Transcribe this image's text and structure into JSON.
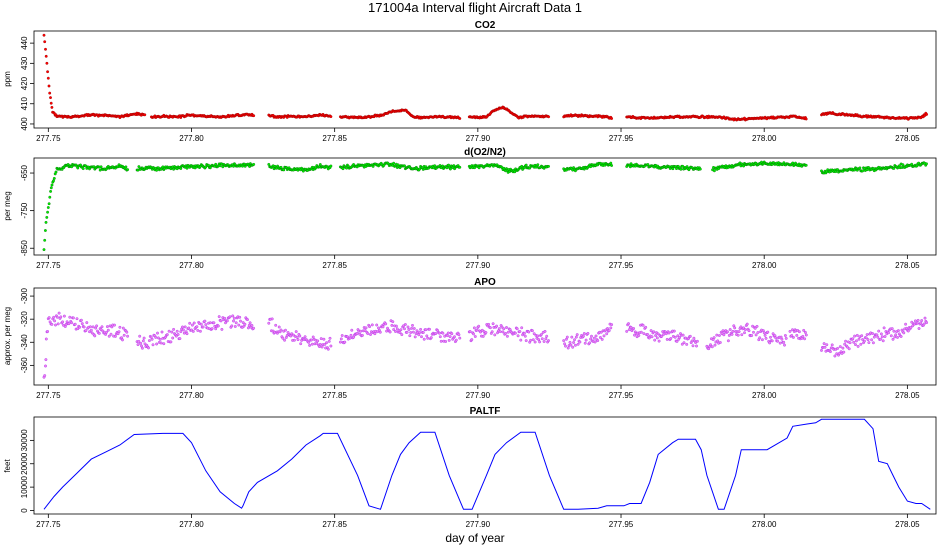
{
  "figure": {
    "title": "171004a   Interval flight Aircraft Data 1",
    "xlabel": "day of year"
  },
  "chart_data": [
    {
      "type": "scatter",
      "title": "CO2",
      "ylabel": "ppm",
      "xlim": [
        277.745,
        278.06
      ],
      "ylim": [
        398,
        446
      ],
      "xticks": [
        "277.75",
        "277.80",
        "277.85",
        "277.90",
        "277.95",
        "278.00",
        "278.05"
      ],
      "yticks": [
        "400",
        "410",
        "420",
        "430",
        "440"
      ],
      "colors": {
        "main": "#ff0000",
        "edge": "#8b0000"
      },
      "segments": [
        {
          "x": [
            277.7485,
            277.7495,
            277.7505,
            277.7515,
            277.753,
            277.756,
            277.76,
            277.765,
            277.77,
            277.775,
            277.78,
            277.784
          ],
          "y": [
            444,
            430,
            415,
            406,
            404,
            403.5,
            403.8,
            404.5,
            404.2,
            403.5,
            405,
            404.6
          ]
        },
        {
          "x": [
            277.786,
            277.79,
            277.795,
            277.8,
            277.805,
            277.81,
            277.815,
            277.82,
            277.822
          ],
          "y": [
            403.5,
            403.8,
            403.5,
            404.5,
            403.8,
            403.5,
            404.2,
            404.5,
            404.2
          ]
        },
        {
          "x": [
            277.827,
            277.83,
            277.835,
            277.84,
            277.845,
            277.849
          ],
          "y": [
            404.2,
            403.5,
            403.8,
            403.4,
            404.6,
            403.5
          ]
        },
        {
          "x": [
            277.852,
            277.86,
            277.865,
            277.868,
            277.87,
            277.875,
            277.877,
            277.88,
            277.885,
            277.89,
            277.894
          ],
          "y": [
            403.5,
            403.2,
            404,
            405,
            406.2,
            406.8,
            403.8,
            403.2,
            403.6,
            403.4,
            403.2
          ]
        },
        {
          "x": [
            277.897,
            277.9,
            277.903,
            277.906,
            277.909,
            277.911,
            277.914,
            277.918,
            277.922,
            277.925
          ],
          "y": [
            403.5,
            403.2,
            403.6,
            407,
            408.2,
            406.5,
            403.2,
            403.8,
            403.8,
            403.4
          ]
        },
        {
          "x": [
            277.93,
            277.935,
            277.94,
            277.945,
            277.947
          ],
          "y": [
            404,
            404.2,
            403.8,
            403.5,
            402.8
          ]
        },
        {
          "x": [
            277.952,
            277.96,
            277.97,
            277.98,
            277.985,
            277.99,
            278.0,
            278.005,
            278.01,
            278.015
          ],
          "y": [
            403.5,
            402.8,
            403.5,
            403.6,
            403.2,
            402.2,
            403,
            403.2,
            403.8,
            402.8
          ]
        },
        {
          "x": [
            278.02,
            278.023,
            278.03,
            278.035,
            278.04,
            278.045,
            278.05,
            278.055,
            278.057
          ],
          "y": [
            404.8,
            405.3,
            404.5,
            403.8,
            403.5,
            403,
            402.8,
            403.2,
            405.5
          ]
        }
      ]
    },
    {
      "type": "scatter",
      "title": "d(O2/N2)",
      "ylabel": "per meg",
      "xlim": [
        277.745,
        278.06
      ],
      "ylim": [
        -868,
        -610
      ],
      "xticks": [
        "277.75",
        "277.80",
        "277.85",
        "277.90",
        "277.95",
        "278.00",
        "278.05"
      ],
      "yticks": [
        "-850",
        "-750",
        "-650"
      ],
      "colors": {
        "main": "#00ee00",
        "edge": "#006400"
      },
      "segments": [
        {
          "x": [
            277.7485,
            277.7492,
            277.75,
            277.7508,
            277.7518,
            277.753,
            277.756,
            277.76,
            277.765,
            277.77,
            277.775,
            277.778
          ],
          "y": [
            -852,
            -780,
            -740,
            -700,
            -670,
            -642,
            -630,
            -632,
            -636,
            -638,
            -632,
            -640
          ]
        },
        {
          "x": [
            277.781,
            277.79,
            277.8,
            277.81,
            277.815,
            277.82,
            277.822
          ],
          "y": [
            -638,
            -637,
            -633,
            -630,
            -630,
            -627,
            -628
          ]
        },
        {
          "x": [
            277.827,
            277.835,
            277.84,
            277.845,
            277.849
          ],
          "y": [
            -632,
            -640,
            -642,
            -630,
            -636
          ]
        },
        {
          "x": [
            277.852,
            277.86,
            277.865,
            277.87,
            277.875,
            277.877,
            277.88,
            277.888,
            277.894
          ],
          "y": [
            -636,
            -630,
            -626,
            -628,
            -635,
            -640,
            -636,
            -634,
            -634
          ]
        },
        {
          "x": [
            277.897,
            277.902,
            277.907,
            277.91,
            277.912,
            277.915,
            277.92,
            277.925
          ],
          "y": [
            -634,
            -632,
            -630,
            -642,
            -646,
            -636,
            -632,
            -636
          ]
        },
        {
          "x": [
            277.93,
            277.935,
            277.94,
            277.945,
            277.947
          ],
          "y": [
            -638,
            -640,
            -630,
            -626,
            -624
          ]
        },
        {
          "x": [
            277.952,
            277.96,
            277.97,
            277.978
          ],
          "y": [
            -628,
            -632,
            -635,
            -638
          ]
        },
        {
          "x": [
            277.982,
            277.99,
            278.0,
            278.01,
            278.015
          ],
          "y": [
            -640,
            -628,
            -624,
            -626,
            -630
          ]
        },
        {
          "x": [
            278.02,
            278.025,
            278.03,
            278.04,
            278.05,
            278.057
          ],
          "y": [
            -646,
            -644,
            -642,
            -638,
            -630,
            -625
          ]
        }
      ]
    },
    {
      "type": "scatter",
      "title": "APO",
      "ylabel": "approx. per meg",
      "xlim": [
        277.745,
        278.06
      ],
      "ylim": [
        -377,
        -293
      ],
      "xticks": [
        "277.75",
        "277.80",
        "277.85",
        "277.90",
        "277.95",
        "278.00",
        "278.05"
      ],
      "yticks": [
        "-360",
        "-340",
        "-320",
        "-300"
      ],
      "colors": {
        "main": "#ee82ee",
        "edge": "#a020f0"
      },
      "segments": [
        {
          "x": [
            277.7485,
            277.749,
            277.7493,
            277.75,
            277.755,
            277.76,
            277.765,
            277.77,
            277.775,
            277.778
          ],
          "y": [
            -372,
            -360,
            -340,
            -322,
            -320,
            -325,
            -329,
            -330,
            -331,
            -335
          ]
        },
        {
          "x": [
            277.781,
            277.785,
            277.79,
            277.795,
            277.8,
            277.805,
            277.81,
            277.815,
            277.822
          ],
          "y": [
            -338,
            -340,
            -336,
            -333,
            -327,
            -325,
            -323,
            -322,
            -325
          ]
        },
        {
          "x": [
            277.827,
            277.83,
            277.835,
            277.84,
            277.845,
            277.849
          ],
          "y": [
            -322,
            -330,
            -335,
            -338,
            -340,
            -342
          ]
        },
        {
          "x": [
            277.852,
            277.86,
            277.865,
            277.87,
            277.875,
            277.88,
            277.885,
            277.89,
            277.894
          ],
          "y": [
            -336,
            -330,
            -328,
            -327,
            -329,
            -332,
            -334,
            -334,
            -336
          ]
        },
        {
          "x": [
            277.897,
            277.9,
            277.905,
            277.91,
            277.915,
            277.92,
            277.925
          ],
          "y": [
            -336,
            -330,
            -328,
            -330,
            -332,
            -336,
            -334
          ]
        },
        {
          "x": [
            277.93,
            277.935,
            277.94,
            277.945,
            277.947
          ],
          "y": [
            -340,
            -338,
            -336,
            -332,
            -325
          ]
        },
        {
          "x": [
            277.952,
            277.958,
            277.963,
            277.968,
            277.972,
            277.977
          ],
          "y": [
            -328,
            -330,
            -335,
            -334,
            -336,
            -342
          ]
        },
        {
          "x": [
            277.98,
            277.985,
            277.99,
            277.995,
            278.0,
            278.005,
            278.008
          ],
          "y": [
            -342,
            -335,
            -330,
            -330,
            -334,
            -338,
            -340
          ]
        },
        {
          "x": [
            278.009,
            278.012,
            278.015
          ],
          "y": [
            -330,
            -332,
            -334
          ]
        },
        {
          "x": [
            278.02,
            278.025,
            278.03,
            278.035,
            278.04,
            278.045,
            278.05,
            278.055,
            278.057
          ],
          "y": [
            -345,
            -348,
            -342,
            -338,
            -334,
            -332,
            -328,
            -322,
            -318
          ]
        }
      ]
    },
    {
      "type": "line",
      "title": "PALTF",
      "ylabel": "feet",
      "xlim": [
        277.745,
        278.06
      ],
      "ylim": [
        -1500,
        40000
      ],
      "xticks": [
        "277.75",
        "277.80",
        "277.85",
        "277.90",
        "277.95",
        "278.00",
        "278.05"
      ],
      "yticks": [
        "0",
        "10000",
        "20000",
        "30000"
      ],
      "colors": {
        "main": "#0000ff"
      },
      "x": [
        277.7485,
        277.752,
        277.755,
        277.76,
        277.765,
        277.77,
        277.775,
        277.78,
        277.79,
        277.797,
        277.8,
        277.805,
        277.81,
        277.815,
        277.8175,
        277.818,
        277.82,
        277.823,
        277.83,
        277.835,
        277.84,
        277.845,
        277.846,
        277.851,
        277.858,
        277.862,
        277.866,
        277.87,
        277.873,
        277.876,
        277.88,
        277.885,
        277.89,
        277.895,
        277.898,
        277.903,
        277.906,
        277.91,
        277.915,
        277.92,
        277.925,
        277.93,
        277.935,
        277.942,
        277.945,
        277.947,
        277.951,
        277.953,
        277.957,
        277.96,
        277.962,
        277.963,
        277.968,
        277.97,
        277.975,
        277.976,
        277.978,
        277.98,
        277.984,
        277.986,
        277.99,
        277.992,
        278.0,
        278.001,
        278.008,
        278.01,
        278.015,
        278.018,
        278.02,
        278.022,
        278.026,
        278.03,
        278.035,
        278.038,
        278.04,
        278.043,
        278.045,
        278.047,
        278.05,
        278.053,
        278.055,
        278.058
      ],
      "y": [
        500,
        6000,
        10000,
        16000,
        22000,
        25000,
        28000,
        32500,
        33000,
        33000,
        29000,
        17000,
        8000,
        3000,
        1000,
        2000,
        8000,
        12000,
        17000,
        22000,
        28000,
        32000,
        33000,
        33000,
        15000,
        2000,
        500,
        15000,
        24000,
        29000,
        33500,
        33500,
        15000,
        500,
        500,
        15000,
        24000,
        29000,
        33500,
        33500,
        15000,
        500,
        500,
        1000,
        2000,
        2000,
        2000,
        3000,
        3000,
        12000,
        20000,
        24000,
        29000,
        30500,
        30500,
        30500,
        26000,
        15000,
        500,
        500,
        15000,
        26000,
        26000,
        26000,
        31000,
        36000,
        37000,
        37500,
        39000,
        39000,
        39000,
        39000,
        39000,
        35000,
        21000,
        20000,
        15000,
        10000,
        4000,
        3000,
        3000,
        500
      ]
    }
  ]
}
